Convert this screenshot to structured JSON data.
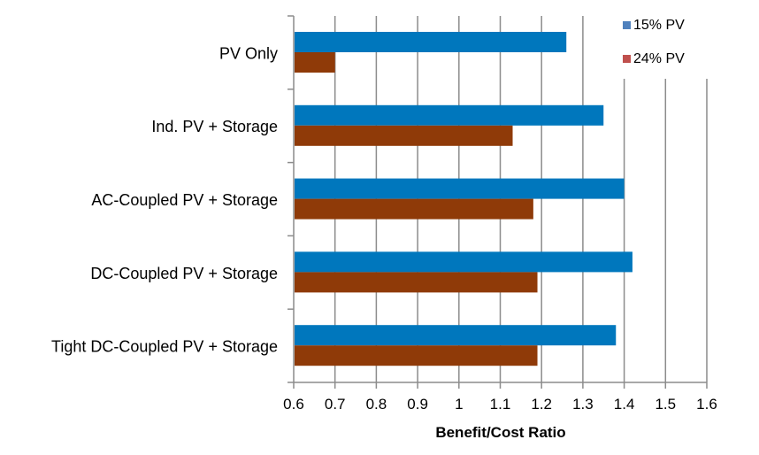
{
  "chart_data": {
    "type": "bar",
    "orientation": "horizontal",
    "title": "",
    "xlabel": "Benefit/Cost Ratio",
    "ylabel": "",
    "categories": [
      "PV Only",
      "Ind. PV + Storage",
      "AC-Coupled PV + Storage",
      "DC-Coupled PV + Storage",
      "Tight DC-Coupled PV + Storage"
    ],
    "series": [
      {
        "name": "15% PV",
        "color": "#0077BD",
        "values": [
          1.26,
          1.35,
          1.4,
          1.42,
          1.38
        ]
      },
      {
        "name": "24% PV",
        "color": "#8F3A08",
        "values": [
          0.7,
          1.13,
          1.18,
          1.19,
          1.19
        ]
      }
    ],
    "legend_colors": [
      "#4F81BD",
      "#C0504D"
    ],
    "xlim": [
      0.6,
      1.6
    ],
    "xticks": [
      "0.6",
      "0.7",
      "0.8",
      "0.9",
      "1",
      "1.1",
      "1.2",
      "1.3",
      "1.4",
      "1.5",
      "1.6"
    ],
    "grid": "vertical",
    "legend_position": "top-right"
  }
}
